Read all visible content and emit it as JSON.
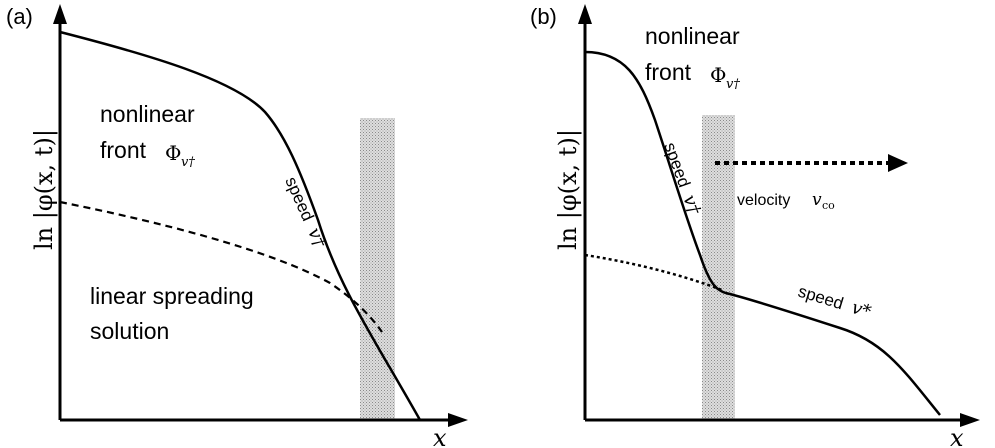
{
  "panel_a": {
    "label": "(a)",
    "y_axis_label": "ln |φ(x, t)|",
    "x_axis_label": "x",
    "front_label_line1": "nonlinear",
    "front_label_line2": "front",
    "front_symbol": "Φ",
    "front_symbol_sub": "v†",
    "speed_word": "speed",
    "speed_symbol": "v†",
    "linear_label_line1": "linear spreading",
    "linear_label_line2": "solution"
  },
  "panel_b": {
    "label": "(b)",
    "y_axis_label": "ln |φ(x, t)|",
    "x_axis_label": "x",
    "front_label_line1": "nonlinear",
    "front_label_line2": "front",
    "front_symbol": "Φ",
    "front_symbol_sub": "v†",
    "speed_word_1": "speed",
    "speed_symbol_1": "v†",
    "velocity_word": "velocity",
    "velocity_symbol": "v",
    "velocity_sub": "co",
    "speed_word_2": "speed",
    "speed_symbol_2": "v*"
  },
  "colors": {
    "ink": "#000000",
    "stripe_fill": "#d9d9d9",
    "stripe_dots": "#8a8a8a"
  }
}
